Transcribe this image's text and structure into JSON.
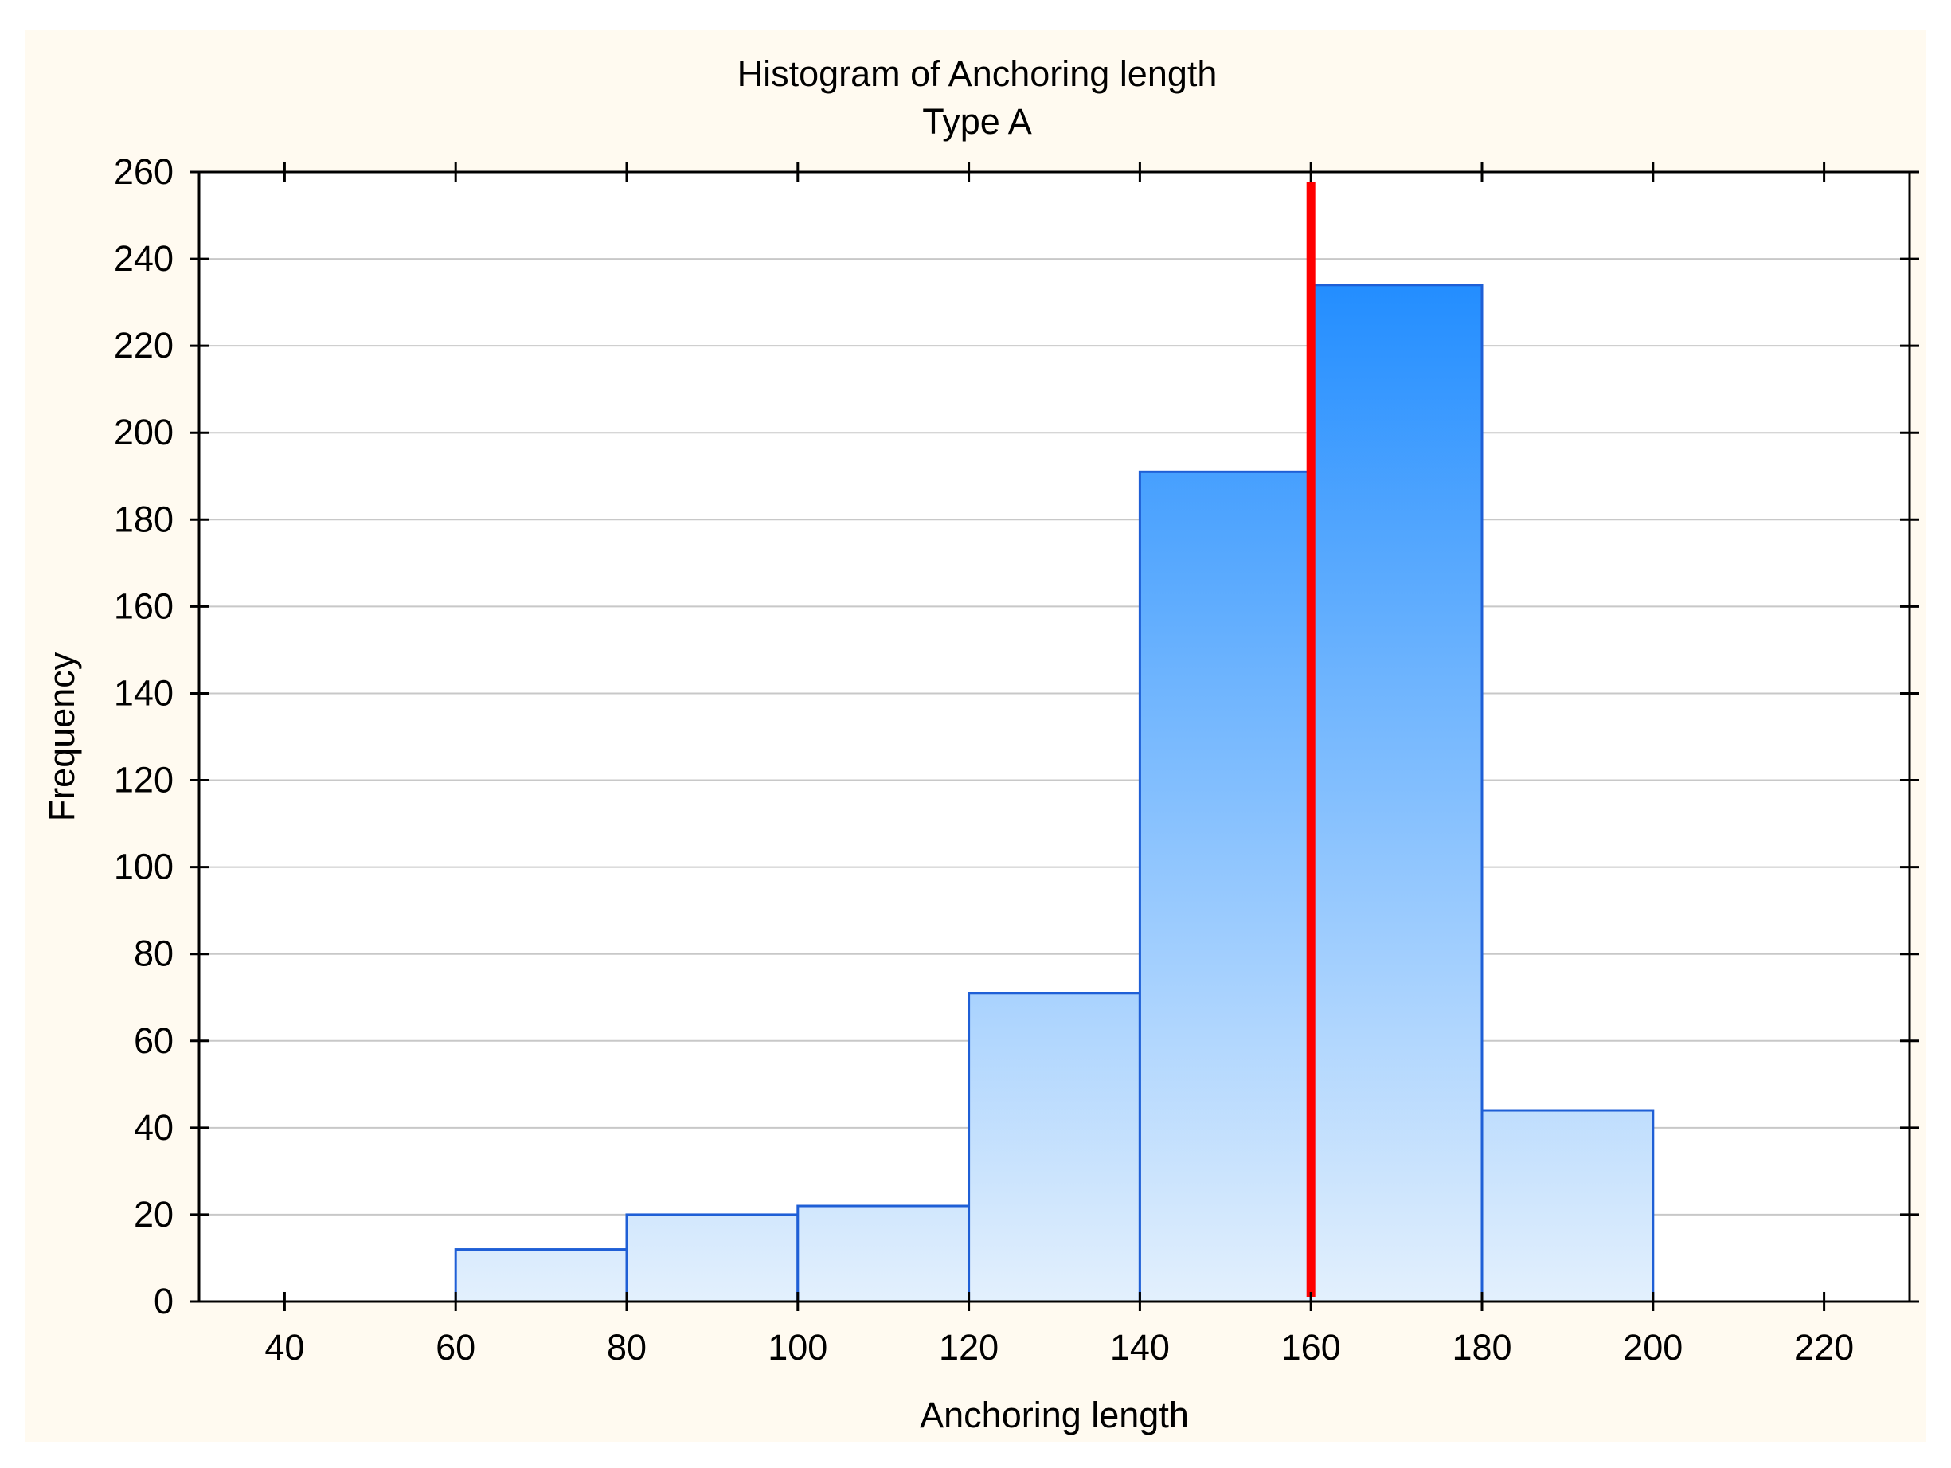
{
  "chart_data": {
    "type": "bar",
    "title": "Histogram of Anchoring length",
    "subtitle": "Type A",
    "xlabel": "Anchoring length",
    "ylabel": "Frequency",
    "xlim": [
      30,
      230
    ],
    "ylim": [
      0,
      260
    ],
    "x_ticks": [
      40,
      60,
      80,
      100,
      120,
      140,
      160,
      180,
      200,
      220
    ],
    "y_ticks": [
      0,
      20,
      40,
      60,
      80,
      100,
      120,
      140,
      160,
      180,
      200,
      220,
      240,
      260
    ],
    "bins": [
      {
        "x0": 60,
        "x1": 80,
        "value": 12
      },
      {
        "x0": 80,
        "x1": 100,
        "value": 20
      },
      {
        "x0": 100,
        "x1": 120,
        "value": 22
      },
      {
        "x0": 120,
        "x1": 140,
        "value": 71
      },
      {
        "x0": 140,
        "x1": 160,
        "value": 191
      },
      {
        "x0": 160,
        "x1": 180,
        "value": 234
      },
      {
        "x0": 180,
        "x1": 200,
        "value": 44
      }
    ],
    "reference_line": {
      "x": 160,
      "color": "#ff0000"
    },
    "grid": true,
    "colors": {
      "background": "#fffaf0",
      "bar_low": "#e3f0fd",
      "bar_high": "#1e8bff",
      "bar_edge": "#1f5fd6",
      "grid": "#c8c8c8"
    }
  }
}
